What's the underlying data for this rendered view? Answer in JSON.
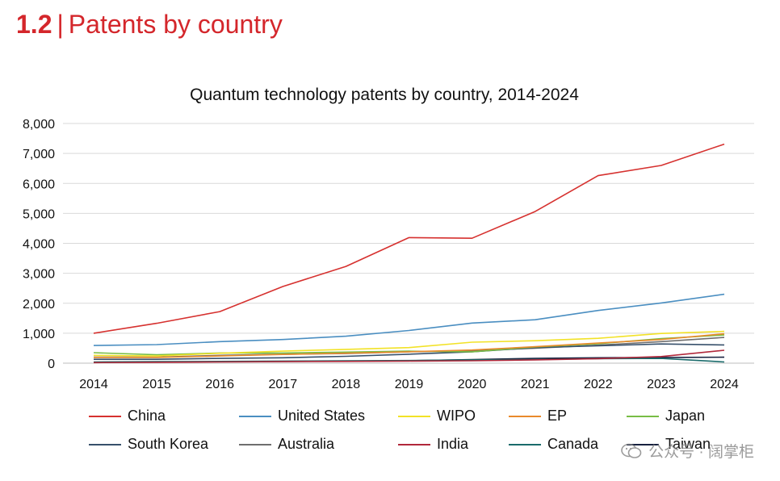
{
  "header": {
    "number": "1.2",
    "separator": "|",
    "title": "Patents by country"
  },
  "chart_data": {
    "type": "line",
    "title": "Quantum technology patents by country, 2014-2024",
    "xlabel": "",
    "ylabel": "",
    "ylim": [
      0,
      8000
    ],
    "yticks": [
      0,
      1000,
      2000,
      3000,
      4000,
      5000,
      6000,
      7000,
      8000
    ],
    "ytick_labels": [
      "0",
      "1,000",
      "2,000",
      "3,000",
      "4,000",
      "5,000",
      "6,000",
      "7,000",
      "8,000"
    ],
    "categories": [
      "2014",
      "2015",
      "2016",
      "2017",
      "2018",
      "2019",
      "2020",
      "2021",
      "2022",
      "2023",
      "2024"
    ],
    "grid": true,
    "legend_position": "bottom",
    "series": [
      {
        "name": "China",
        "color": "#d6312f",
        "values": [
          1000,
          1330,
          1720,
          2560,
          3230,
          4190,
          4170,
          5060,
          6260,
          6600,
          7310
        ]
      },
      {
        "name": "United States",
        "color": "#4a8ec1",
        "values": [
          590,
          620,
          720,
          790,
          900,
          1090,
          1340,
          1450,
          1760,
          2010,
          2300
        ]
      },
      {
        "name": "WIPO",
        "color": "#f2e227",
        "values": [
          260,
          240,
          330,
          400,
          460,
          520,
          700,
          750,
          830,
          990,
          1060
        ]
      },
      {
        "name": "EP",
        "color": "#e98a2b",
        "values": [
          190,
          190,
          240,
          290,
          330,
          380,
          440,
          550,
          670,
          790,
          980
        ]
      },
      {
        "name": "Japan",
        "color": "#78bd45",
        "values": [
          350,
          280,
          340,
          340,
          370,
          400,
          380,
          540,
          650,
          820,
          940
        ]
      },
      {
        "name": "South Korea",
        "color": "#37506b",
        "values": [
          130,
          130,
          160,
          180,
          230,
          300,
          380,
          520,
          580,
          640,
          610
        ]
      },
      {
        "name": "Australia",
        "color": "#6e6e6e",
        "values": [
          200,
          200,
          260,
          300,
          320,
          380,
          410,
          500,
          600,
          720,
          860
        ]
      },
      {
        "name": "India",
        "color": "#b1283b",
        "values": [
          20,
          30,
          40,
          50,
          60,
          70,
          80,
          110,
          150,
          220,
          430
        ]
      },
      {
        "name": "Canada",
        "color": "#1a6b6b",
        "values": [
          40,
          50,
          60,
          70,
          80,
          90,
          110,
          120,
          150,
          160,
          40
        ]
      },
      {
        "name": "Taiwan",
        "color": "#17213f",
        "values": [
          30,
          40,
          50,
          60,
          70,
          80,
          120,
          160,
          180,
          190,
          200
        ]
      }
    ]
  },
  "watermark": {
    "text": "公众号 · 阔掌柜"
  }
}
